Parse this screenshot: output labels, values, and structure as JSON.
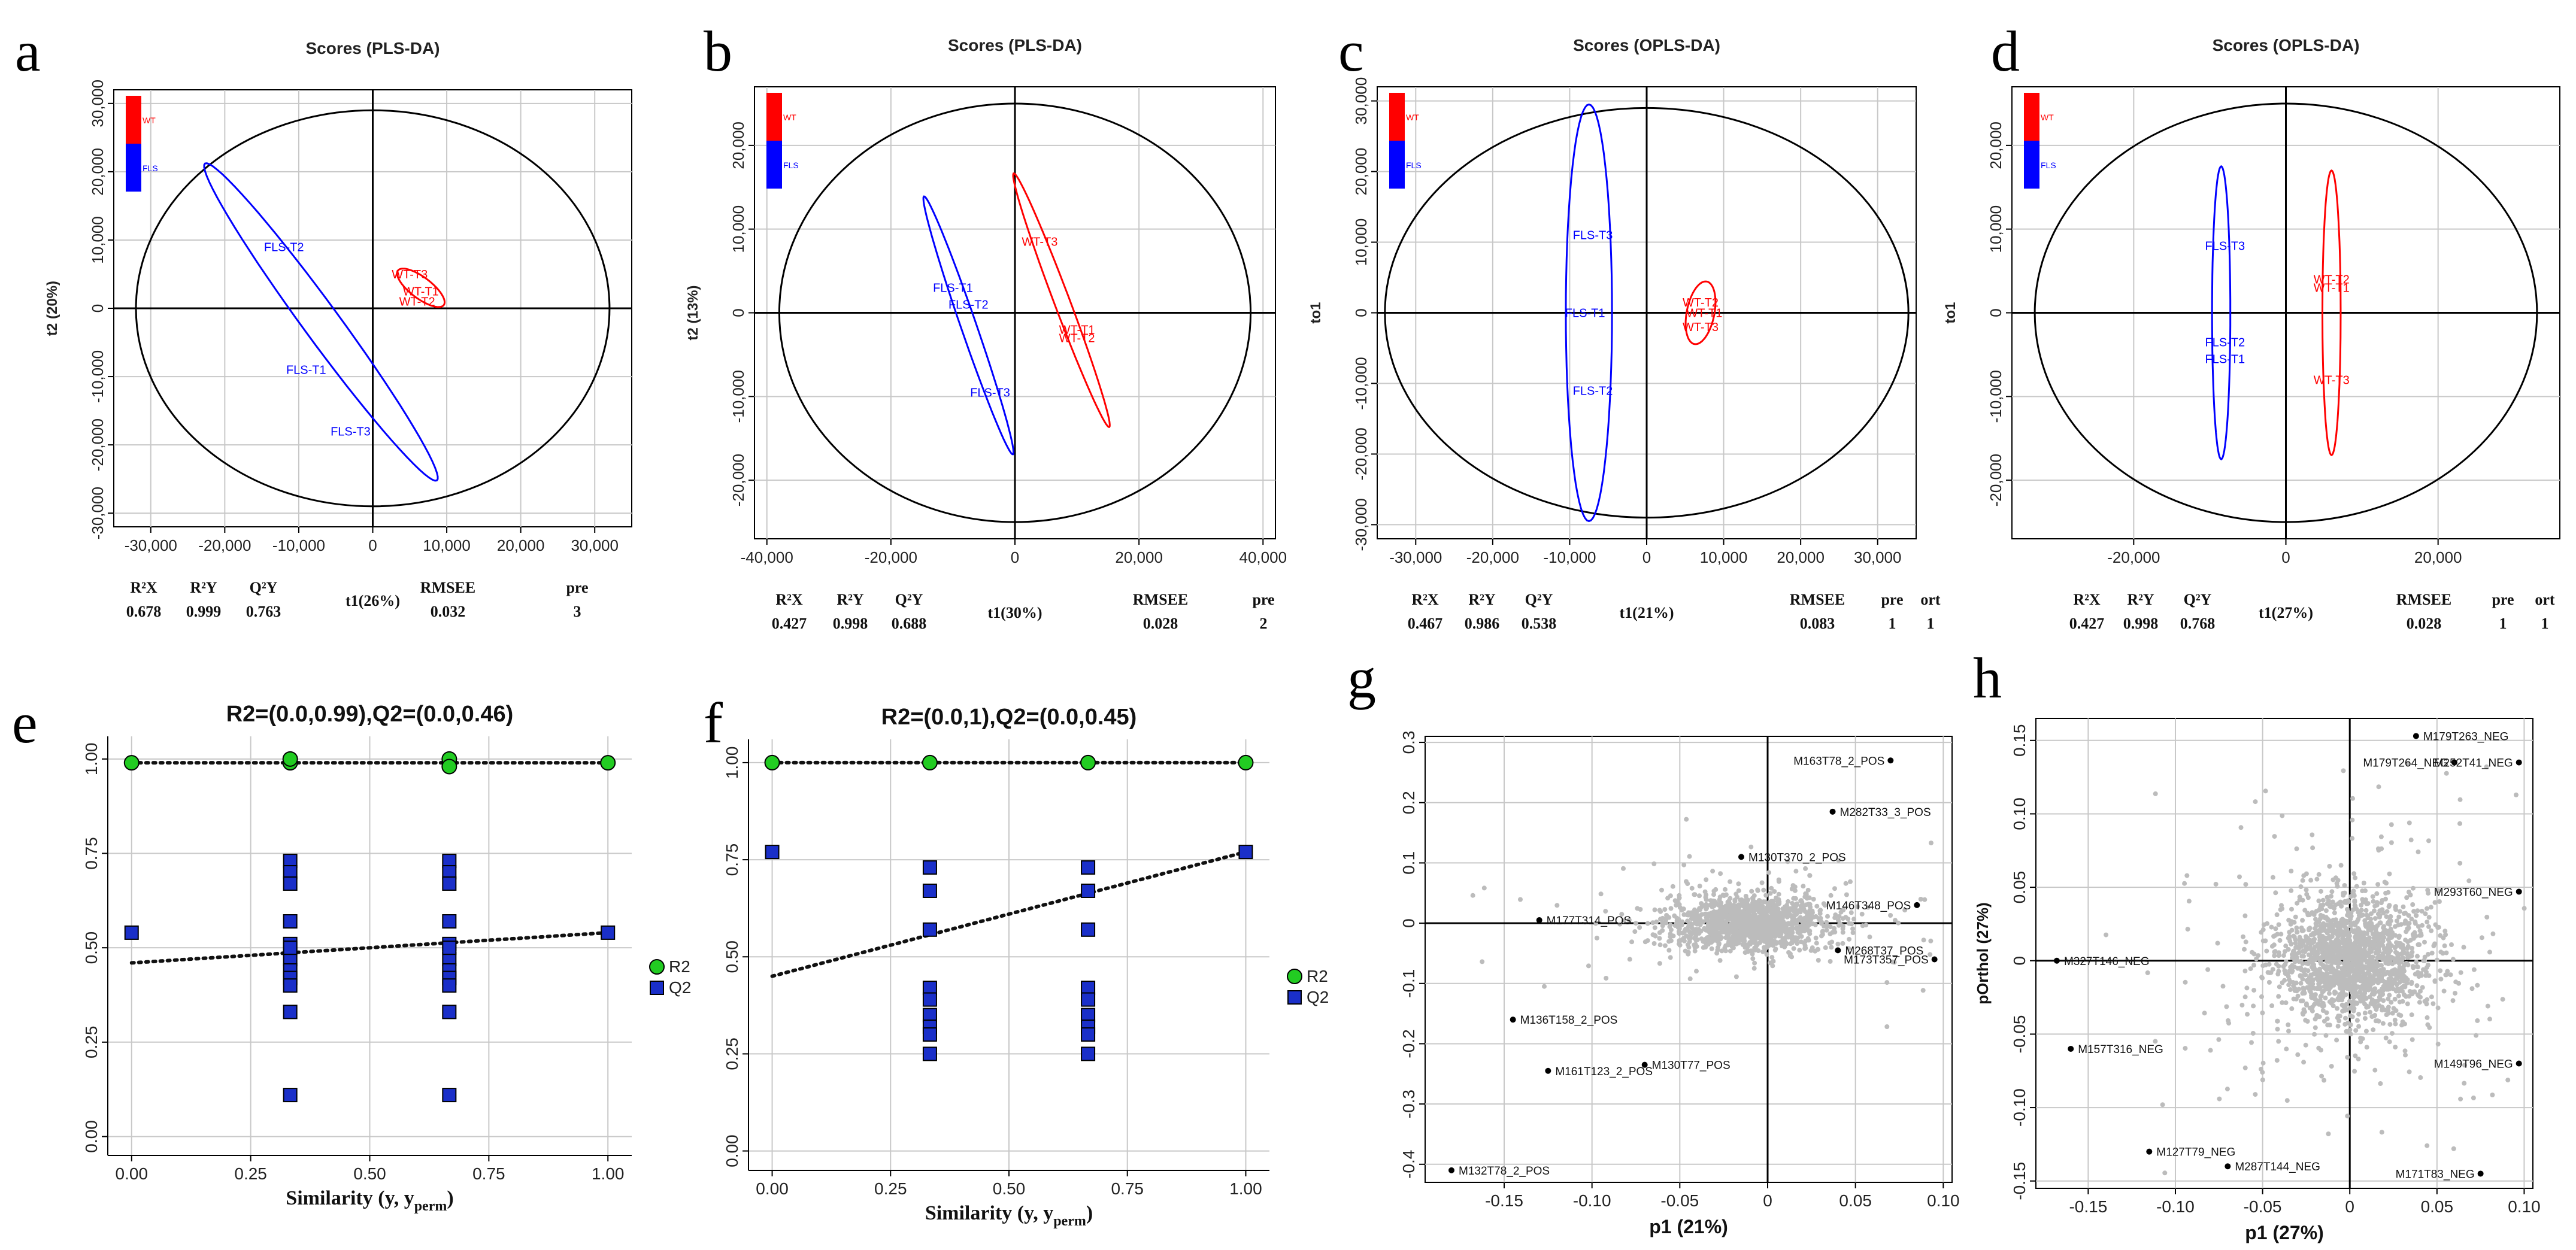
{
  "chart_data": [
    {
      "id": "a",
      "type": "scatter",
      "panel_label": "a",
      "title": "Scores (PLS-DA)",
      "xlabel": "t1(26%)",
      "ylabel": "t2 (20%)",
      "xlim": [
        -35000,
        35000
      ],
      "ylim": [
        -32000,
        32000
      ],
      "xticks": [
        -30000,
        -20000,
        -10000,
        0,
        10000,
        20000,
        30000
      ],
      "xtick_labels": [
        "-30,000",
        "-20,000",
        "-10,000",
        "0",
        "10,000",
        "20,000",
        "30,000"
      ],
      "yticks": [
        -30000,
        -20000,
        -10000,
        0,
        10000,
        20000,
        30000
      ],
      "ytick_labels": [
        "-30,000",
        "-20,000",
        "-10,000",
        "0",
        "10,000",
        "20,000",
        "30,000"
      ],
      "legend": [
        "WT",
        "FLS"
      ],
      "hotelling": {
        "rx": 32000,
        "ry": 29000
      },
      "points": [
        {
          "label": "FLS-T2",
          "x": -12000,
          "y": 9000,
          "group": "FLS"
        },
        {
          "label": "FLS-T1",
          "x": -9000,
          "y": -9000,
          "group": "FLS"
        },
        {
          "label": "FLS-T3",
          "x": -3000,
          "y": -18000,
          "group": "FLS"
        },
        {
          "label": "WT-T3",
          "x": 5000,
          "y": 5000,
          "group": "WT"
        },
        {
          "label": "WT-T1",
          "x": 6500,
          "y": 2500,
          "group": "WT"
        },
        {
          "label": "WT-T2",
          "x": 6000,
          "y": 1000,
          "group": "WT"
        }
      ],
      "group_ellipses": [
        {
          "group": "FLS",
          "cx": -7000,
          "cy": -2000,
          "a": 28000,
          "b": 2500,
          "angle_deg": -56
        },
        {
          "group": "WT",
          "cx": 6500,
          "cy": 3000,
          "a": 4000,
          "b": 1500,
          "angle_deg": -40
        }
      ],
      "stats": {
        "headers": [
          "R²X",
          "R²Y",
          "Q²Y",
          "RMSEE",
          "pre"
        ],
        "values": [
          "0.678",
          "0.999",
          "0.763",
          "0.032",
          "3"
        ]
      }
    },
    {
      "id": "b",
      "type": "scatter",
      "panel_label": "b",
      "title": "Scores (PLS-DA)",
      "xlabel": "t1(30%)",
      "ylabel": "t2 (13%)",
      "xlim": [
        -42000,
        42000
      ],
      "ylim": [
        -27000,
        27000
      ],
      "xticks": [
        -40000,
        -20000,
        0,
        20000,
        40000
      ],
      "xtick_labels": [
        "-40,000",
        "-20,000",
        "0",
        "20,000",
        "40,000"
      ],
      "yticks": [
        -20000,
        -10000,
        0,
        10000,
        20000
      ],
      "ytick_labels": [
        "-20,000",
        "-10,000",
        "0",
        "10,000",
        "20,000"
      ],
      "legend": [
        "WT",
        "FLS"
      ],
      "hotelling": {
        "rx": 38000,
        "ry": 25000
      },
      "points": [
        {
          "label": "FLS-T1",
          "x": -10000,
          "y": 3000,
          "group": "FLS"
        },
        {
          "label": "FLS-T2",
          "x": -7500,
          "y": 1000,
          "group": "FLS"
        },
        {
          "label": "FLS-T3",
          "x": -4000,
          "y": -9500,
          "group": "FLS"
        },
        {
          "label": "WT-T3",
          "x": 4000,
          "y": 8500,
          "group": "WT"
        },
        {
          "label": "WT-T1",
          "x": 10000,
          "y": -2000,
          "group": "WT"
        },
        {
          "label": "WT-T2",
          "x": 10000,
          "y": -3000,
          "group": "WT"
        }
      ],
      "group_ellipses": [
        {
          "group": "FLS",
          "cx": -7500,
          "cy": -1500,
          "a": 17000,
          "b": 1200,
          "angle_deg": -65
        },
        {
          "group": "WT",
          "cx": 7500,
          "cy": 1500,
          "a": 17000,
          "b": 1200,
          "angle_deg": -63
        }
      ],
      "stats": {
        "headers": [
          "R²X",
          "R²Y",
          "Q²Y",
          "RMSEE",
          "pre"
        ],
        "values": [
          "0.427",
          "0.998",
          "0.688",
          "0.028",
          "2"
        ]
      }
    },
    {
      "id": "c",
      "type": "scatter",
      "panel_label": "c",
      "title": "Scores (OPLS-DA)",
      "xlabel": "t1(21%)",
      "ylabel": "to1",
      "xlim": [
        -35000,
        35000
      ],
      "ylim": [
        -32000,
        32000
      ],
      "xticks": [
        -30000,
        -20000,
        -10000,
        0,
        10000,
        20000,
        30000
      ],
      "xtick_labels": [
        "-30,000",
        "-20,000",
        "-10,000",
        "0",
        "10,000",
        "20,000",
        "30,000"
      ],
      "yticks": [
        -30000,
        -20000,
        -10000,
        0,
        10000,
        20000,
        30000
      ],
      "ytick_labels": [
        "-30,000",
        "-20,000",
        "-10,000",
        "0",
        "10,000",
        "20,000",
        "30,000"
      ],
      "legend": [
        "WT",
        "FLS"
      ],
      "hotelling": {
        "rx": 34000,
        "ry": 29000
      },
      "points": [
        {
          "label": "FLS-T3",
          "x": -7000,
          "y": 11000,
          "group": "FLS"
        },
        {
          "label": "FLS-T1",
          "x": -8000,
          "y": 0,
          "group": "FLS"
        },
        {
          "label": "FLS-T2",
          "x": -7000,
          "y": -11000,
          "group": "FLS"
        },
        {
          "label": "WT-T2",
          "x": 7000,
          "y": 1500,
          "group": "WT"
        },
        {
          "label": "WT-T1",
          "x": 7500,
          "y": 0,
          "group": "WT"
        },
        {
          "label": "WT-T3",
          "x": 7000,
          "y": -2000,
          "group": "WT"
        }
      ],
      "group_ellipses": [
        {
          "group": "FLS",
          "cx": -7500,
          "cy": 0,
          "a": 29500,
          "b": 3000,
          "angle_deg": 90
        },
        {
          "group": "WT",
          "cx": 7000,
          "cy": 0,
          "a": 4500,
          "b": 1800,
          "angle_deg": 80
        }
      ],
      "stats": {
        "headers": [
          "R²X",
          "R²Y",
          "Q²Y",
          "RMSEE",
          "pre",
          "ort"
        ],
        "values": [
          "0.467",
          "0.986",
          "0.538",
          "0.083",
          "1",
          "1"
        ]
      }
    },
    {
      "id": "d",
      "type": "scatter",
      "panel_label": "d",
      "title": "Scores (OPLS-DA)",
      "xlabel": "t1(27%)",
      "ylabel": "to1",
      "xlim": [
        -36000,
        36000
      ],
      "ylim": [
        -27000,
        27000
      ],
      "xticks": [
        -20000,
        0,
        20000
      ],
      "xtick_labels": [
        "-20,000",
        "0",
        "20,000"
      ],
      "yticks": [
        -20000,
        -10000,
        0,
        10000,
        20000
      ],
      "ytick_labels": [
        "-20,000",
        "-10,000",
        "0",
        "10,000",
        "20,000"
      ],
      "legend": [
        "WT",
        "FLS"
      ],
      "hotelling": {
        "rx": 33000,
        "ry": 25000
      },
      "points": [
        {
          "label": "FLS-T3",
          "x": -8000,
          "y": 8000,
          "group": "FLS"
        },
        {
          "label": "FLS-T2",
          "x": -8000,
          "y": -3500,
          "group": "FLS"
        },
        {
          "label": "FLS-T1",
          "x": -8000,
          "y": -5500,
          "group": "FLS"
        },
        {
          "label": "WT-T2",
          "x": 6000,
          "y": 4000,
          "group": "WT"
        },
        {
          "label": "WT-T1",
          "x": 6000,
          "y": 3000,
          "group": "WT"
        },
        {
          "label": "WT-T3",
          "x": 6000,
          "y": -8000,
          "group": "WT"
        }
      ],
      "group_ellipses": [
        {
          "group": "FLS",
          "cx": -8500,
          "cy": 0,
          "a": 17500,
          "b": 1200,
          "angle_deg": 90
        },
        {
          "group": "WT",
          "cx": 6000,
          "cy": 0,
          "a": 17000,
          "b": 1200,
          "angle_deg": 90
        }
      ],
      "stats": {
        "headers": [
          "R²X",
          "R²Y",
          "Q²Y",
          "RMSEE",
          "pre",
          "ort"
        ],
        "values": [
          "0.427",
          "0.998",
          "0.768",
          "0.028",
          "1",
          "1"
        ]
      }
    },
    {
      "id": "e",
      "type": "scatter",
      "panel_label": "e",
      "title": "R2=(0.0,0.99),Q2=(0.0,0.46)",
      "xlabel": "Similarity (y, y",
      "xlabel_sub": "perm",
      "xlabel_end": ")",
      "xlim": [
        -0.05,
        1.05
      ],
      "ylim": [
        -0.05,
        1.06
      ],
      "xticks": [
        0,
        0.25,
        0.5,
        0.75,
        1
      ],
      "xtick_labels": [
        "0.00",
        "0.25",
        "0.50",
        "0.75",
        "1.00"
      ],
      "yticks": [
        0,
        0.25,
        0.5,
        0.75,
        1
      ],
      "ytick_labels": [
        "0.00",
        "0.25",
        "0.50",
        "0.75",
        "1.00"
      ],
      "legend": [
        "R2",
        "Q2"
      ],
      "series": [
        {
          "name": "R2",
          "x": [
            0,
            0.333,
            0.333,
            0.667,
            0.667,
            0.667,
            1
          ],
          "y": [
            0.99,
            0.99,
            1.0,
            0.99,
            1.0,
            0.98,
            0.99
          ]
        },
        {
          "name": "Q2",
          "x": [
            0,
            0.333,
            0.333,
            0.333,
            0.333,
            0.333,
            0.333,
            0.333,
            0.333,
            0.333,
            0.333,
            0.333,
            0.333,
            0.667,
            0.667,
            0.667,
            0.667,
            0.667,
            0.667,
            0.667,
            0.667,
            0.667,
            0.667,
            0.667,
            0.667,
            1
          ],
          "y": [
            0.54,
            0.73,
            0.7,
            0.67,
            0.57,
            0.51,
            0.47,
            0.44,
            0.42,
            0.4,
            0.33,
            0.11,
            0.5,
            0.73,
            0.7,
            0.67,
            0.57,
            0.51,
            0.47,
            0.44,
            0.42,
            0.4,
            0.33,
            0.11,
            0.5,
            0.54
          ]
        }
      ],
      "fit_lines": [
        {
          "name": "R2",
          "intercept": 0.99,
          "slope": 0.0
        },
        {
          "name": "Q2",
          "intercept": 0.46,
          "slope": 0.08
        }
      ]
    },
    {
      "id": "f",
      "type": "scatter",
      "panel_label": "f",
      "title": "R2=(0.0,1),Q2=(0.0,0.45)",
      "xlabel": "Similarity (y, y",
      "xlabel_sub": "perm",
      "xlabel_end": ")",
      "xlim": [
        -0.05,
        1.05
      ],
      "ylim": [
        -0.05,
        1.06
      ],
      "xticks": [
        0,
        0.25,
        0.5,
        0.75,
        1
      ],
      "xtick_labels": [
        "0.00",
        "0.25",
        "0.50",
        "0.75",
        "1.00"
      ],
      "yticks": [
        0,
        0.25,
        0.5,
        0.75,
        1
      ],
      "ytick_labels": [
        "0.00",
        "0.25",
        "0.50",
        "0.75",
        "1.00"
      ],
      "legend": [
        "R2",
        "Q2"
      ],
      "series": [
        {
          "name": "R2",
          "x": [
            0,
            0.333,
            0.667,
            1
          ],
          "y": [
            1.0,
            1.0,
            1.0,
            1.0
          ]
        },
        {
          "name": "Q2",
          "x": [
            0,
            0.333,
            0.333,
            0.333,
            0.333,
            0.333,
            0.333,
            0.333,
            0.333,
            0.333,
            0.667,
            0.667,
            0.667,
            0.667,
            0.667,
            0.667,
            0.667,
            0.667,
            0.667,
            1
          ],
          "y": [
            0.77,
            0.73,
            0.67,
            0.57,
            0.42,
            0.39,
            0.35,
            0.32,
            0.3,
            0.25,
            0.73,
            0.67,
            0.57,
            0.42,
            0.39,
            0.35,
            0.32,
            0.3,
            0.25,
            0.77
          ]
        }
      ],
      "fit_lines": [
        {
          "name": "R2",
          "intercept": 1.0,
          "slope": 0.0
        },
        {
          "name": "Q2",
          "intercept": 0.45,
          "slope": 0.32
        }
      ]
    },
    {
      "id": "g",
      "type": "scatter",
      "panel_label": "g",
      "title": "",
      "xlabel": "p1 (21%)",
      "ylabel": "",
      "xlim": [
        -0.195,
        0.105
      ],
      "ylim": [
        -0.43,
        0.31
      ],
      "xticks": [
        -0.15,
        -0.1,
        -0.05,
        0,
        0.05,
        0.1
      ],
      "xtick_labels": [
        "-0.15",
        "-0.10",
        "-0.05",
        "0",
        "0.05",
        "0.10"
      ],
      "yticks": [
        -0.4,
        -0.3,
        -0.2,
        -0.1,
        0,
        0.1,
        0.2,
        0.3
      ],
      "ytick_labels": [
        "-0.4",
        "-0.3",
        "-0.2",
        "-0.1",
        "0",
        "0.1",
        "0.2",
        "0.3"
      ],
      "cloud": {
        "cx": -0.01,
        "cy": 0.0,
        "sx": 0.022,
        "sy": 0.022,
        "n": 1500
      },
      "labeled_points": [
        {
          "label": "M163T78_2_POS",
          "x": 0.07,
          "y": 0.27
        },
        {
          "label": "M282T33_3_POS",
          "x": 0.037,
          "y": 0.185
        },
        {
          "label": "M130T370_2_POS",
          "x": -0.015,
          "y": 0.11
        },
        {
          "label": "M146T348_POS",
          "x": 0.085,
          "y": 0.03
        },
        {
          "label": "M177T314_POS",
          "x": -0.13,
          "y": 0.005
        },
        {
          "label": "M268T37_POS",
          "x": 0.04,
          "y": -0.045
        },
        {
          "label": "M173T357_POS",
          "x": 0.095,
          "y": -0.06
        },
        {
          "label": "M136T158_2_POS",
          "x": -0.145,
          "y": -0.16
        },
        {
          "label": "M161T123_2_POS",
          "x": -0.125,
          "y": -0.245
        },
        {
          "label": "M130T77_POS",
          "x": -0.07,
          "y": -0.235
        },
        {
          "label": "M132T78_2_POS",
          "x": -0.18,
          "y": -0.41
        }
      ]
    },
    {
      "id": "h",
      "type": "scatter",
      "panel_label": "h",
      "title": "",
      "xlabel": "p1 (27%)",
      "ylabel": "pOrthol (27%)",
      "xlim": [
        -0.18,
        0.105
      ],
      "ylim": [
        -0.155,
        0.165
      ],
      "xticks": [
        -0.15,
        -0.1,
        -0.05,
        0,
        0.05,
        0.1
      ],
      "xtick_labels": [
        "-0.15",
        "-0.10",
        "-0.05",
        "0",
        "0.05",
        "0.10"
      ],
      "yticks": [
        -0.15,
        -0.1,
        -0.05,
        0,
        0.05,
        0.1,
        0.15
      ],
      "ytick_labels": [
        "-0.15",
        "-0.10",
        "-0.05",
        "0",
        "0.05",
        "0.10",
        "0.15"
      ],
      "cloud": {
        "cx": 0.002,
        "cy": 0.0,
        "sx": 0.022,
        "sy": 0.022,
        "n": 1800
      },
      "labeled_points": [
        {
          "label": "M179T263_NEG",
          "x": 0.038,
          "y": 0.153
        },
        {
          "label": "M179T264_NEG",
          "x": 0.06,
          "y": 0.135
        },
        {
          "label": "M252T41_NEG",
          "x": 0.097,
          "y": 0.135
        },
        {
          "label": "M293T60_NEG",
          "x": 0.097,
          "y": 0.047
        },
        {
          "label": "M327T146_NEG",
          "x": -0.168,
          "y": 0.0
        },
        {
          "label": "M157T316_NEG",
          "x": -0.16,
          "y": -0.06
        },
        {
          "label": "M149T96_NEG",
          "x": 0.097,
          "y": -0.07
        },
        {
          "label": "M127T79_NEG",
          "x": -0.115,
          "y": -0.13
        },
        {
          "label": "M287T144_NEG",
          "x": -0.07,
          "y": -0.14
        },
        {
          "label": "M171T83_NEG",
          "x": 0.075,
          "y": -0.145
        }
      ]
    }
  ],
  "colors": {
    "wt": "#ff0000",
    "fls": "#0000ff",
    "r2": "#22cc22",
    "q2": "#1a2fc9",
    "cloud": "#bcbcbc",
    "grid": "#c8c8c8"
  }
}
